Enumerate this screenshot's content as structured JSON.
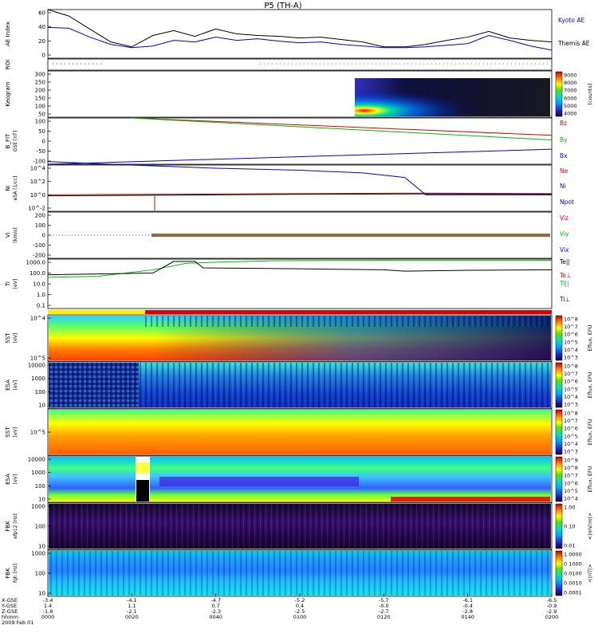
{
  "title": "P5 (TH-A)",
  "date_label": "2009 Feb 01",
  "time_axis": {
    "row_labels": [
      "X-GSE",
      "Y-GSE",
      "Z-GSE",
      "hhmm"
    ],
    "ticks": [
      {
        "x": "-3.4",
        "y": "1.4",
        "z": "-1.6",
        "t": "0000"
      },
      {
        "x": "-4.1",
        "y": "1.1",
        "z": "-2.1",
        "t": "0020"
      },
      {
        "x": "-4.7",
        "y": "0.7",
        "z": "-2.3",
        "t": "0040"
      },
      {
        "x": "-5.2",
        "y": "0.4",
        "z": "-2.5",
        "t": "0100"
      },
      {
        "x": "-5.7",
        "y": "-0.0",
        "z": "-2.7",
        "t": "0120"
      },
      {
        "x": "-6.1",
        "y": "-0.4",
        "z": "-2.8",
        "t": "0140"
      },
      {
        "x": "-6.5",
        "y": "-0.9",
        "z": "-2.9",
        "t": "0200"
      }
    ]
  },
  "colors": {
    "kyoto": "#0000cc",
    "themis": "#000000",
    "red": "#dd0000",
    "green": "#00bb00",
    "blue": "#0000cc",
    "black": "#000000"
  },
  "chart_data": [
    {
      "panel": "ae",
      "type": "line",
      "ylabel": "AE Index",
      "ylim": [
        0,
        60
      ],
      "yticks": [
        "60",
        "40",
        "20",
        "0"
      ],
      "series": [
        {
          "name": "Kyoto AE",
          "x": [
            0,
            5,
            10,
            15,
            20,
            25,
            30,
            35,
            40,
            45,
            50,
            55,
            60,
            65,
            70,
            75,
            80,
            85,
            90,
            95,
            100,
            105,
            110,
            115,
            120
          ],
          "values": [
            38,
            37,
            26,
            17,
            13,
            15,
            22,
            20,
            26,
            22,
            24,
            21,
            19,
            20,
            17,
            15,
            13,
            13,
            14,
            16,
            18,
            28,
            22,
            15,
            10
          ]
        },
        {
          "name": "Themis AE",
          "x": [
            0,
            5,
            10,
            15,
            20,
            25,
            30,
            35,
            40,
            45,
            50,
            55,
            60,
            65,
            70,
            75,
            80,
            85,
            90,
            95,
            100,
            105,
            110,
            115,
            120
          ],
          "values": [
            60,
            52,
            36,
            20,
            14,
            28,
            34,
            27,
            36,
            30,
            28,
            27,
            25,
            26,
            23,
            20,
            14,
            14,
            17,
            22,
            26,
            33,
            25,
            22,
            20
          ]
        }
      ]
    },
    {
      "panel": "roi",
      "type": "line",
      "ylabel": "ROI",
      "series": [
        {
          "name": "",
          "values": []
        }
      ]
    },
    {
      "panel": "keogram",
      "type": "heatmap",
      "ylabel": "Keogram",
      "ylim": [
        0,
        300
      ],
      "yticks": [
        "300",
        "250",
        "200",
        "150",
        "100",
        "50"
      ],
      "colorbar": {
        "label": "[counts]",
        "ticks": [
          "9000",
          "8000",
          "7000",
          "6000",
          "5000",
          "4000"
        ]
      }
    },
    {
      "panel": "bfield",
      "type": "line",
      "ylabel": "B_FIT",
      "units": "GSE [nT]",
      "ylim": [
        -100,
        100
      ],
      "yticks": [
        "100",
        "50",
        "0",
        "-50",
        "-100"
      ],
      "series": [
        {
          "name": "Bz",
          "x": [
            20,
            120
          ],
          "values": [
            100,
            25
          ]
        },
        {
          "name": "By",
          "x": [
            20,
            120
          ],
          "values": [
            100,
            5
          ]
        },
        {
          "name": "Bx",
          "x": [
            0,
            120
          ],
          "values": [
            -100,
            -35
          ]
        }
      ]
    },
    {
      "panel": "density",
      "type": "line",
      "ylabel": "Ni",
      "units": "eSA [1/cc]",
      "ylog": true,
      "yticks": [
        "10^4",
        "10^2",
        "10^0",
        "10^-2"
      ],
      "series": [
        {
          "name": "Ne",
          "x": [
            0,
            30,
            60,
            90,
            120
          ],
          "values": [
            1,
            1.2,
            1.5,
            1.8,
            1.5
          ]
        },
        {
          "name": "Ni",
          "x": [
            0,
            20,
            40,
            60,
            75,
            85,
            90,
            100,
            120
          ],
          "values": [
            100000,
            30000,
            10000,
            5000,
            2000,
            400,
            1,
            1,
            1
          ]
        },
        {
          "name": "Npot",
          "x": [
            0,
            30,
            60,
            90,
            120
          ],
          "values": [
            0.7,
            0.9,
            1.2,
            1.4,
            1.3
          ]
        }
      ]
    },
    {
      "panel": "velocity",
      "type": "line",
      "ylabel": "Vi",
      "units": "[km/s]",
      "ylim": [
        -300,
        300
      ],
      "yticks": [
        "200",
        "100",
        "0",
        "-100",
        "-200"
      ],
      "series": [
        {
          "name": "Viz"
        },
        {
          "name": "Viy"
        },
        {
          "name": "Vix"
        }
      ]
    },
    {
      "panel": "temperature",
      "type": "line",
      "ylabel": "Ti",
      "units": "[eV]",
      "ylog": true,
      "yticks": [
        "1000.0",
        "100.0",
        "10.0",
        "1.0",
        "0.1"
      ],
      "series": [
        {
          "name": "Te||"
        },
        {
          "name": "Te⊥"
        },
        {
          "name": "Ti||"
        },
        {
          "name": "Ti⊥"
        }
      ]
    },
    {
      "panel": "sst_ion",
      "type": "heatmap",
      "ylabel": "SST",
      "units": "[eV]",
      "yticks": [
        "10^4",
        "10^5"
      ],
      "colorbar": {
        "label": "Eflux, EFU",
        "ticks": [
          "10^8",
          "10^7",
          "10^6",
          "10^5",
          "10^4",
          "10^3"
        ]
      }
    },
    {
      "panel": "esa_ion",
      "type": "heatmap",
      "ylabel": "ESA",
      "units": "[eV]",
      "yticks": [
        "10000",
        "1000",
        "100",
        "10"
      ],
      "colorbar": {
        "label": "Eflux, EFU",
        "ticks": [
          "10^8",
          "10^7",
          "10^6",
          "10^5",
          "10^4",
          "10^3"
        ]
      }
    },
    {
      "panel": "sst_elec",
      "type": "heatmap",
      "ylabel": "SST",
      "units": "[eV]",
      "yticks": [
        "10^5"
      ],
      "colorbar": {
        "label": "Eflux, EFU",
        "ticks": [
          "10^8",
          "10^7",
          "10^6",
          "10^5",
          "10^4",
          "10^3"
        ]
      }
    },
    {
      "panel": "esa_elec",
      "type": "heatmap",
      "ylabel": "ESA",
      "units": "[eV]",
      "yticks": [
        "10000",
        "1000",
        "100",
        "10"
      ],
      "colorbar": {
        "label": "Eflux, EFU",
        "ticks": [
          "10^9",
          "10^8",
          "10^7",
          "10^6",
          "10^5",
          "10^4"
        ]
      }
    },
    {
      "panel": "fbk_e",
      "type": "heatmap",
      "ylabel": "FBK",
      "units": "efp12 [Hz]",
      "yticks": [
        "1000",
        "100",
        "10"
      ],
      "colorbar": {
        "label": "<|mV/m|>",
        "ticks": [
          "1.00",
          "0.10",
          "0.01"
        ]
      }
    },
    {
      "panel": "fbk_b",
      "type": "heatmap",
      "ylabel": "FBK",
      "units": "fgh [Hz]",
      "yticks": [
        "1000",
        "100",
        "10"
      ],
      "colorbar": {
        "label": "<|nT|>",
        "ticks": [
          "1.0000",
          "0.1000",
          "0.0100",
          "0.0010",
          "0.0001"
        ]
      }
    }
  ]
}
